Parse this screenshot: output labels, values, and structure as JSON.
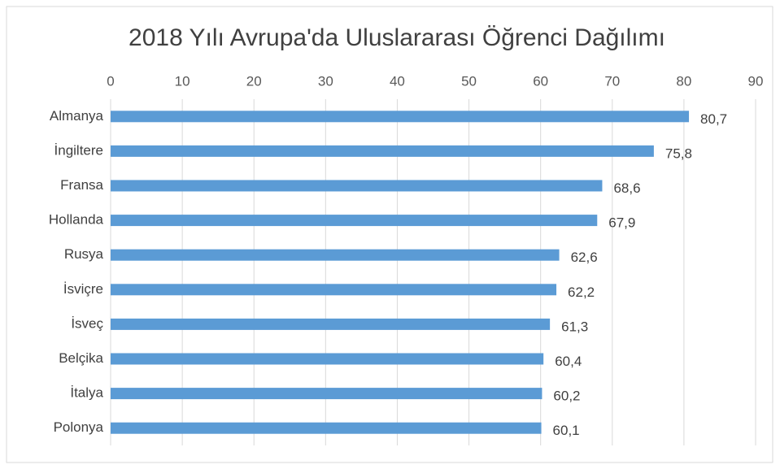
{
  "chart_data": {
    "type": "bar",
    "orientation": "horizontal",
    "title": "2018 Yılı Avrupa'da Uluslararası Öğrenci Dağılımı",
    "categories": [
      "Almanya",
      "İngiltere",
      "Fransa",
      "Hollanda",
      "Rusya",
      "İsviçre",
      "İsveç",
      "Belçika",
      "İtalya",
      "Polonya"
    ],
    "values": [
      80.7,
      75.8,
      68.6,
      67.9,
      62.6,
      62.2,
      61.3,
      60.4,
      60.2,
      60.1
    ],
    "value_labels": [
      "80,7",
      "75,8",
      "68,6",
      "67,9",
      "62,6",
      "62,2",
      "61,3",
      "60,4",
      "60,2",
      "60,1"
    ],
    "color": "#5b9bd5",
    "xlim": [
      0,
      90
    ],
    "xticks": [
      0,
      10,
      20,
      30,
      40,
      50,
      60,
      70,
      80,
      90
    ],
    "grid": true
  }
}
